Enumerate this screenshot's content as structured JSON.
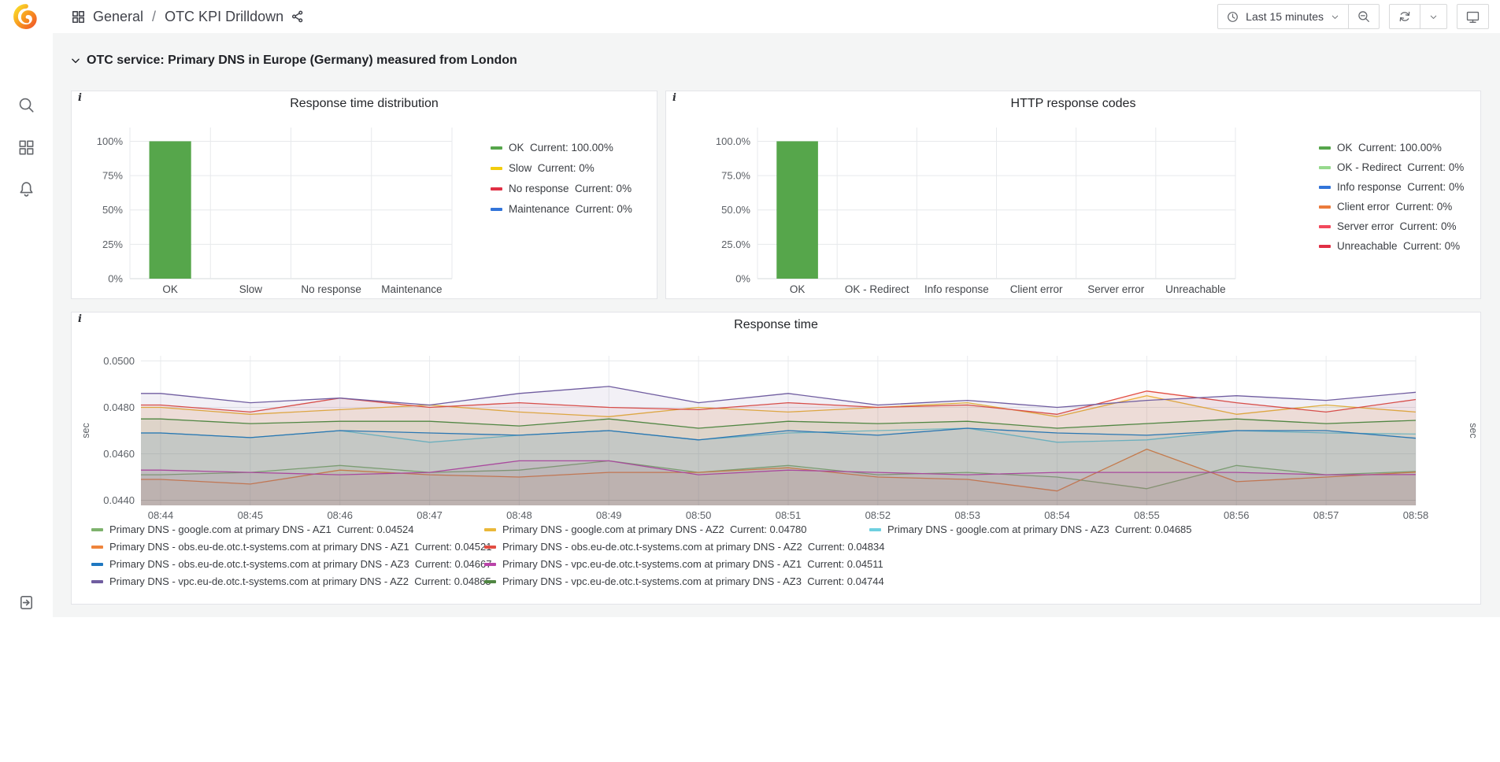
{
  "topnav": {
    "breadcrumb": {
      "section": "General",
      "separator": "/",
      "page": "OTC KPI Drilldown"
    },
    "time_picker": {
      "label": "Last 15 minutes"
    }
  },
  "row_header": {
    "title": "OTC service: Primary DNS in Europe (Germany) measured from London"
  },
  "panels": {
    "response_time_distribution": {
      "title": "Response time distribution",
      "info_icon": "i"
    },
    "http_response_codes": {
      "title": "HTTP response codes",
      "info_icon": "i"
    },
    "response_time": {
      "title": "Response time",
      "info_icon": "i"
    }
  },
  "colors": {
    "content_background": "#f4f5f5",
    "panel_background": "#ffffff",
    "ok_green": "#56A64B",
    "grid_line": "#e7e9ec"
  },
  "chart_data": [
    {
      "type": "bar",
      "title": "Response time distribution",
      "categories": [
        "OK",
        "Slow",
        "No response",
        "Maintenance"
      ],
      "values": [
        100,
        0,
        0,
        0
      ],
      "ytick_values": [
        0,
        25,
        50,
        75,
        100
      ],
      "ytick_labels": [
        "0%",
        "25%",
        "50%",
        "75%",
        "100%"
      ],
      "ylim": [
        0,
        110
      ],
      "bar_color": "#56A64B",
      "grid": true,
      "legend_position": "right",
      "current_prefix": "Current:",
      "legend": [
        {
          "label": "OK",
          "current": "100.00%",
          "color": "#56A64B"
        },
        {
          "label": "Slow",
          "current": "0%",
          "color": "#F2CC0C"
        },
        {
          "label": "No response",
          "current": "0%",
          "color": "#E02F44"
        },
        {
          "label": "Maintenance",
          "current": "0%",
          "color": "#3274D9"
        }
      ]
    },
    {
      "type": "bar",
      "title": "HTTP response codes",
      "categories": [
        "OK",
        "OK - Redirect",
        "Info response",
        "Client error",
        "Server error",
        "Unreachable"
      ],
      "values": [
        100,
        0,
        0,
        0,
        0,
        0
      ],
      "ytick_values": [
        0,
        25,
        50,
        75,
        100
      ],
      "ytick_labels": [
        "0%",
        "25.0%",
        "50.0%",
        "75.0%",
        "100.0%"
      ],
      "ylim": [
        0,
        110
      ],
      "bar_color": "#56A64B",
      "grid": true,
      "legend_position": "right",
      "current_prefix": "Current:",
      "legend": [
        {
          "label": "OK",
          "current": "100.00%",
          "color": "#56A64B"
        },
        {
          "label": "OK - Redirect",
          "current": "0%",
          "color": "#96D98D"
        },
        {
          "label": "Info response",
          "current": "0%",
          "color": "#3274D9"
        },
        {
          "label": "Client error",
          "current": "0%",
          "color": "#EB7B3C"
        },
        {
          "label": "Server error",
          "current": "0%",
          "color": "#F2495C"
        },
        {
          "label": "Unreachable",
          "current": "0%",
          "color": "#E02F44"
        }
      ]
    },
    {
      "type": "area",
      "title": "Response time",
      "ylabel_left": "sec",
      "ylabel_right": "sec",
      "x": [
        "08:44",
        "08:45",
        "08:46",
        "08:47",
        "08:48",
        "08:49",
        "08:50",
        "08:51",
        "08:52",
        "08:53",
        "08:54",
        "08:55",
        "08:56",
        "08:57",
        "08:58"
      ],
      "ytick_values": [
        0.044,
        0.046,
        0.048,
        0.05
      ],
      "ytick_labels": [
        "0.0440",
        "0.0460",
        "0.0480",
        "0.0500"
      ],
      "ylim": [
        0.04378,
        0.05022
      ],
      "fill_opacity": 0.09,
      "grid": true,
      "legend_position": "bottom",
      "current_prefix": "Current:",
      "series": [
        {
          "name": "Primary DNS - google.com at primary DNS - AZ1",
          "color": "#7EB26D",
          "current": "0.04524",
          "values": [
            0.0451,
            0.0452,
            0.0455,
            0.0452,
            0.0453,
            0.0457,
            0.0452,
            0.0455,
            0.0451,
            0.0452,
            0.045,
            0.0445,
            0.0455,
            0.0451,
            0.04524
          ]
        },
        {
          "name": "Primary DNS - google.com at primary DNS - AZ2",
          "color": "#EAB839",
          "current": "0.04780",
          "values": [
            0.048,
            0.0477,
            0.0479,
            0.0481,
            0.0478,
            0.0476,
            0.048,
            0.0478,
            0.048,
            0.0482,
            0.0476,
            0.0485,
            0.0477,
            0.0481,
            0.0478
          ]
        },
        {
          "name": "Primary DNS - google.com at primary DNS - AZ3",
          "color": "#6ED0E0",
          "current": "0.04685",
          "values": [
            0.0469,
            0.0467,
            0.047,
            0.0465,
            0.0468,
            0.047,
            0.0466,
            0.0469,
            0.047,
            0.0471,
            0.0465,
            0.0466,
            0.047,
            0.0469,
            0.04685
          ]
        },
        {
          "name": "Primary DNS - obs.eu-de.otc.t-systems.com at primary DNS - AZ1",
          "color": "#EF843C",
          "current": "0.04521",
          "values": [
            0.0449,
            0.0447,
            0.0453,
            0.0451,
            0.045,
            0.0452,
            0.0452,
            0.0454,
            0.045,
            0.0449,
            0.0444,
            0.0462,
            0.0448,
            0.045,
            0.04521
          ]
        },
        {
          "name": "Primary DNS - obs.eu-de.otc.t-systems.com at primary DNS - AZ2",
          "color": "#E24D42",
          "current": "0.04834",
          "values": [
            0.0481,
            0.0478,
            0.0484,
            0.048,
            0.0482,
            0.048,
            0.0479,
            0.0482,
            0.048,
            0.0481,
            0.0477,
            0.0487,
            0.0482,
            0.0478,
            0.04834
          ]
        },
        {
          "name": "Primary DNS - obs.eu-de.otc.t-systems.com at primary DNS - AZ3",
          "color": "#1F78C1",
          "current": "0.04667",
          "values": [
            0.0469,
            0.0467,
            0.047,
            0.0469,
            0.0468,
            0.047,
            0.0466,
            0.047,
            0.0468,
            0.0471,
            0.0469,
            0.0468,
            0.047,
            0.047,
            0.04667
          ]
        },
        {
          "name": "Primary DNS - vpc.eu-de.otc.t-systems.com at primary DNS - AZ1",
          "color": "#BA43A9",
          "current": "0.04511",
          "values": [
            0.0453,
            0.0452,
            0.0451,
            0.0452,
            0.0457,
            0.0457,
            0.0451,
            0.0453,
            0.0452,
            0.0451,
            0.0452,
            0.0452,
            0.0452,
            0.0451,
            0.04511
          ]
        },
        {
          "name": "Primary DNS - vpc.eu-de.otc.t-systems.com at primary DNS - AZ2",
          "color": "#705DA0",
          "current": "0.04865",
          "values": [
            0.0486,
            0.0482,
            0.0484,
            0.0481,
            0.0486,
            0.0489,
            0.0482,
            0.0486,
            0.0481,
            0.0483,
            0.048,
            0.0483,
            0.0485,
            0.0483,
            0.04865
          ]
        },
        {
          "name": "Primary DNS - vpc.eu-de.otc.t-systems.com at primary DNS - AZ3",
          "color": "#508642",
          "current": "0.04744",
          "values": [
            0.0475,
            0.0473,
            0.0474,
            0.0474,
            0.0472,
            0.0475,
            0.0471,
            0.0474,
            0.0473,
            0.0474,
            0.0471,
            0.0473,
            0.0475,
            0.0473,
            0.04744
          ]
        }
      ]
    }
  ]
}
